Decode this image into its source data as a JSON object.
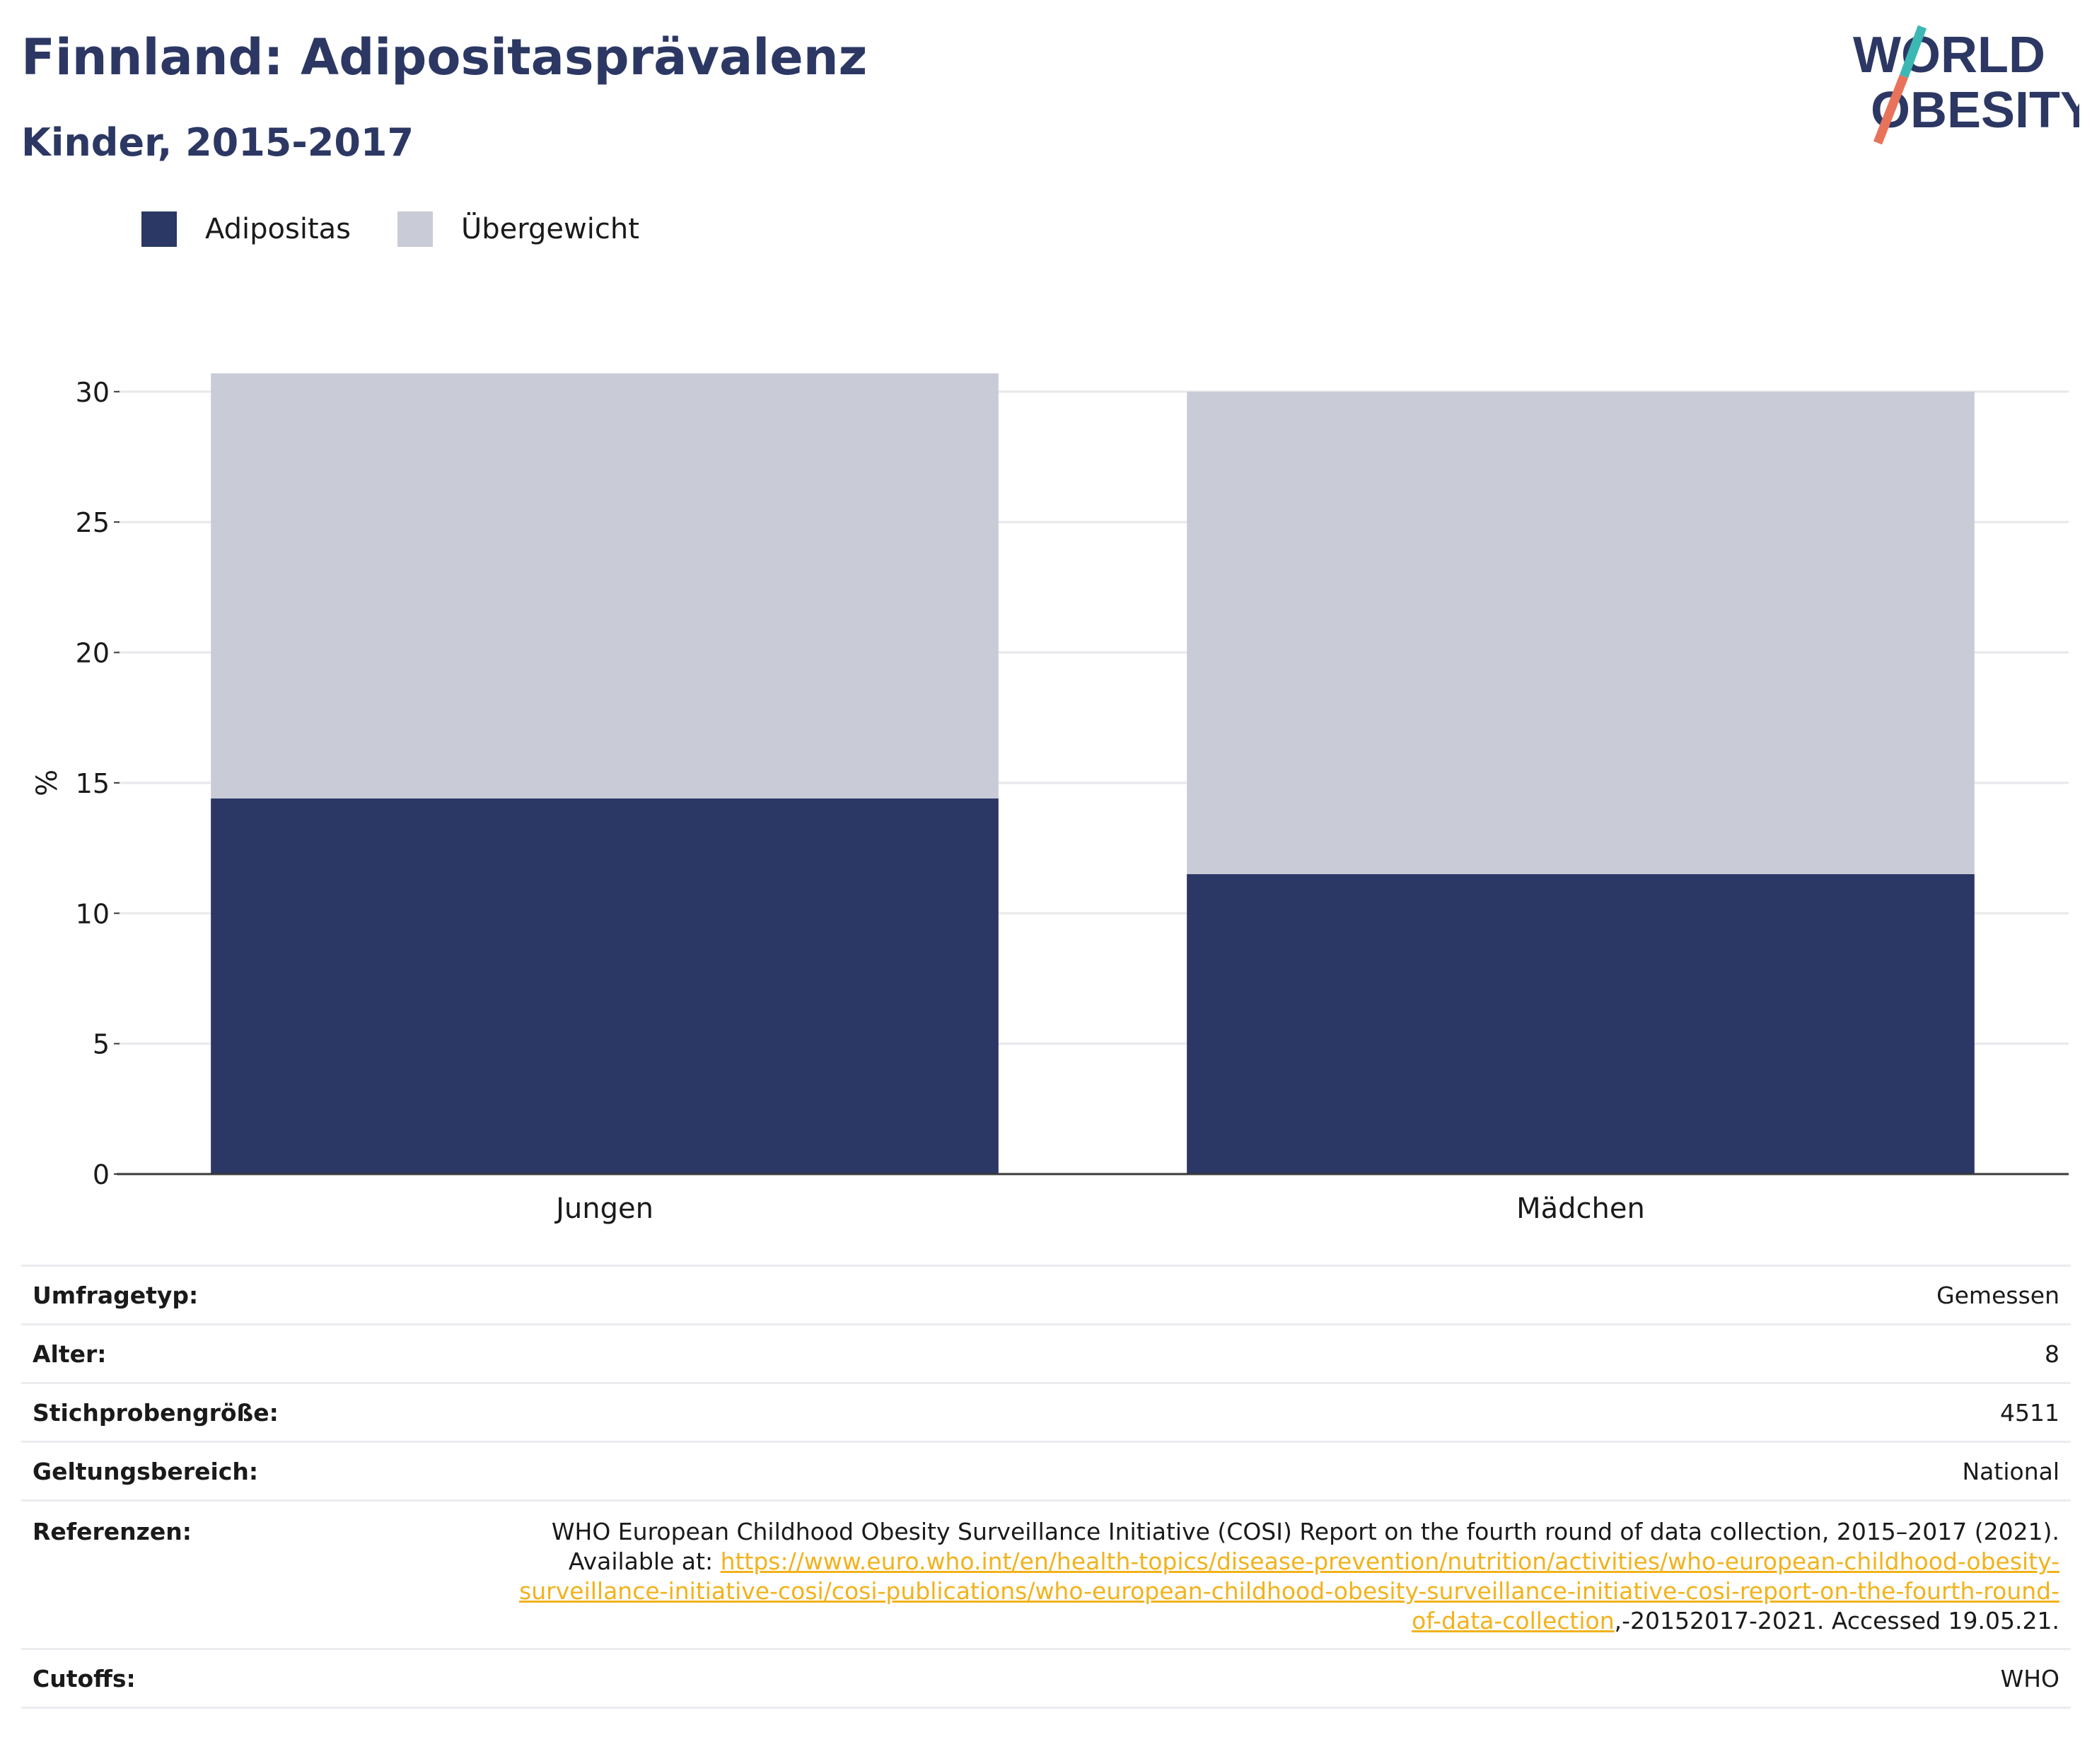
{
  "header": {
    "title": "Finnland: Adipositasprävalenz",
    "subtitle": "Kinder, 2015-2017"
  },
  "logo": {
    "line1": "WORLD",
    "line2": "OBESITY",
    "colors": {
      "text": "#2c3863",
      "slash_top": "#3bb8b4",
      "slash_bottom": "#e8735a"
    }
  },
  "colors": {
    "adipositas": "#2b3764",
    "uebergewicht": "#c9cbd6",
    "axis": "#3a3a3a",
    "grid": "#e8e8ec",
    "link": "#f2b21b"
  },
  "chart_data": {
    "type": "bar",
    "stacked": true,
    "categories": [
      "Jungen",
      "Mädchen"
    ],
    "series": [
      {
        "name": "Adipositas",
        "values": [
          14.4,
          11.5
        ]
      },
      {
        "name": "Übergewicht",
        "values": [
          16.3,
          18.5
        ]
      }
    ],
    "totals": [
      30.7,
      30.0
    ],
    "ylabel": "%",
    "ylim": [
      0,
      32
    ],
    "yticks": [
      0,
      5,
      10,
      15,
      20,
      25,
      30
    ],
    "grid": true,
    "legend_position": "top-left"
  },
  "meta": {
    "rows": [
      {
        "key": "Umfragetyp:",
        "value": "Gemessen"
      },
      {
        "key": "Alter:",
        "value": "8"
      },
      {
        "key": "Stichprobengröße:",
        "value": "4511"
      },
      {
        "key": "Geltungsbereich:",
        "value": "National"
      }
    ],
    "reference": {
      "key": "Referenzen:",
      "text1": "WHO European Childhood Obesity Surveillance Initiative (COSI) Report on the fourth round of data collection, 2015–2017 (2021).",
      "available": "Available at: ",
      "link_part1": "https://www.euro.who.int/en/health-topics/disease-prevention/nutrition/activities/who-european-childhood-obesity-",
      "link_part2": "surveillance-initiative-cosi/cosi-publications/who-european-childhood-obesity-surveillance-initiative-cosi-report-on-the-fourth-round-",
      "link_part3": "of-data-collection",
      "suffix": ",-20152017-2021. Accessed 19.05.21."
    },
    "cutoffs": {
      "key": "Cutoffs:",
      "value": "WHO"
    }
  }
}
